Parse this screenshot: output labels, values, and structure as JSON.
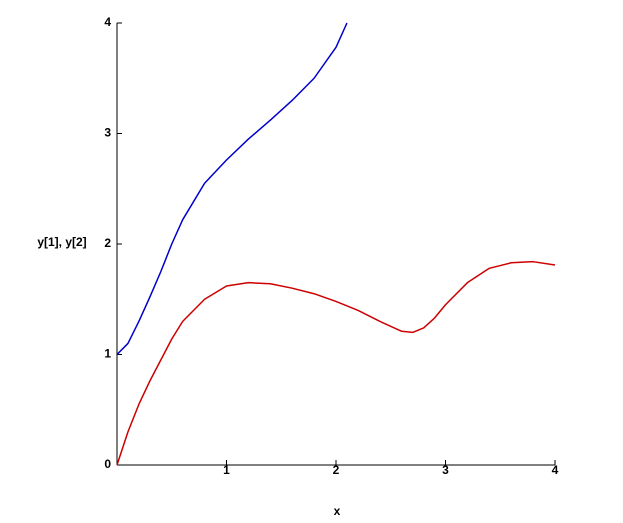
{
  "chart_data": {
    "type": "line",
    "xlabel": "x",
    "ylabel": "y[1], y[2]",
    "xlim": [
      0,
      4
    ],
    "ylim": [
      0,
      4
    ],
    "xticks": [
      1,
      2,
      3,
      4
    ],
    "yticks": [
      0,
      1,
      2,
      3,
      4
    ],
    "grid": false,
    "series": [
      {
        "color": "#0000cc",
        "x": [
          0,
          0.1,
          0.2,
          0.3,
          0.4,
          0.5,
          0.6,
          0.8,
          1.0,
          1.2,
          1.4,
          1.6,
          1.8,
          2.0,
          2.1
        ],
        "values": [
          1,
          1.1,
          1.3,
          1.52,
          1.75,
          2.0,
          2.22,
          2.55,
          2.76,
          2.95,
          3.12,
          3.3,
          3.5,
          3.78,
          4.0
        ]
      },
      {
        "color": "#cc0000",
        "x": [
          0,
          0.1,
          0.2,
          0.3,
          0.4,
          0.5,
          0.6,
          0.8,
          1.0,
          1.2,
          1.4,
          1.6,
          1.8,
          2.0,
          2.2,
          2.4,
          2.6,
          2.7,
          2.8,
          2.9,
          3.0,
          3.2,
          3.4,
          3.6,
          3.8,
          4.0
        ],
        "values": [
          0,
          0.3,
          0.55,
          0.76,
          0.95,
          1.14,
          1.3,
          1.5,
          1.62,
          1.65,
          1.64,
          1.6,
          1.55,
          1.48,
          1.4,
          1.3,
          1.21,
          1.2,
          1.24,
          1.33,
          1.45,
          1.65,
          1.78,
          1.83,
          1.84,
          1.81
        ]
      }
    ]
  }
}
